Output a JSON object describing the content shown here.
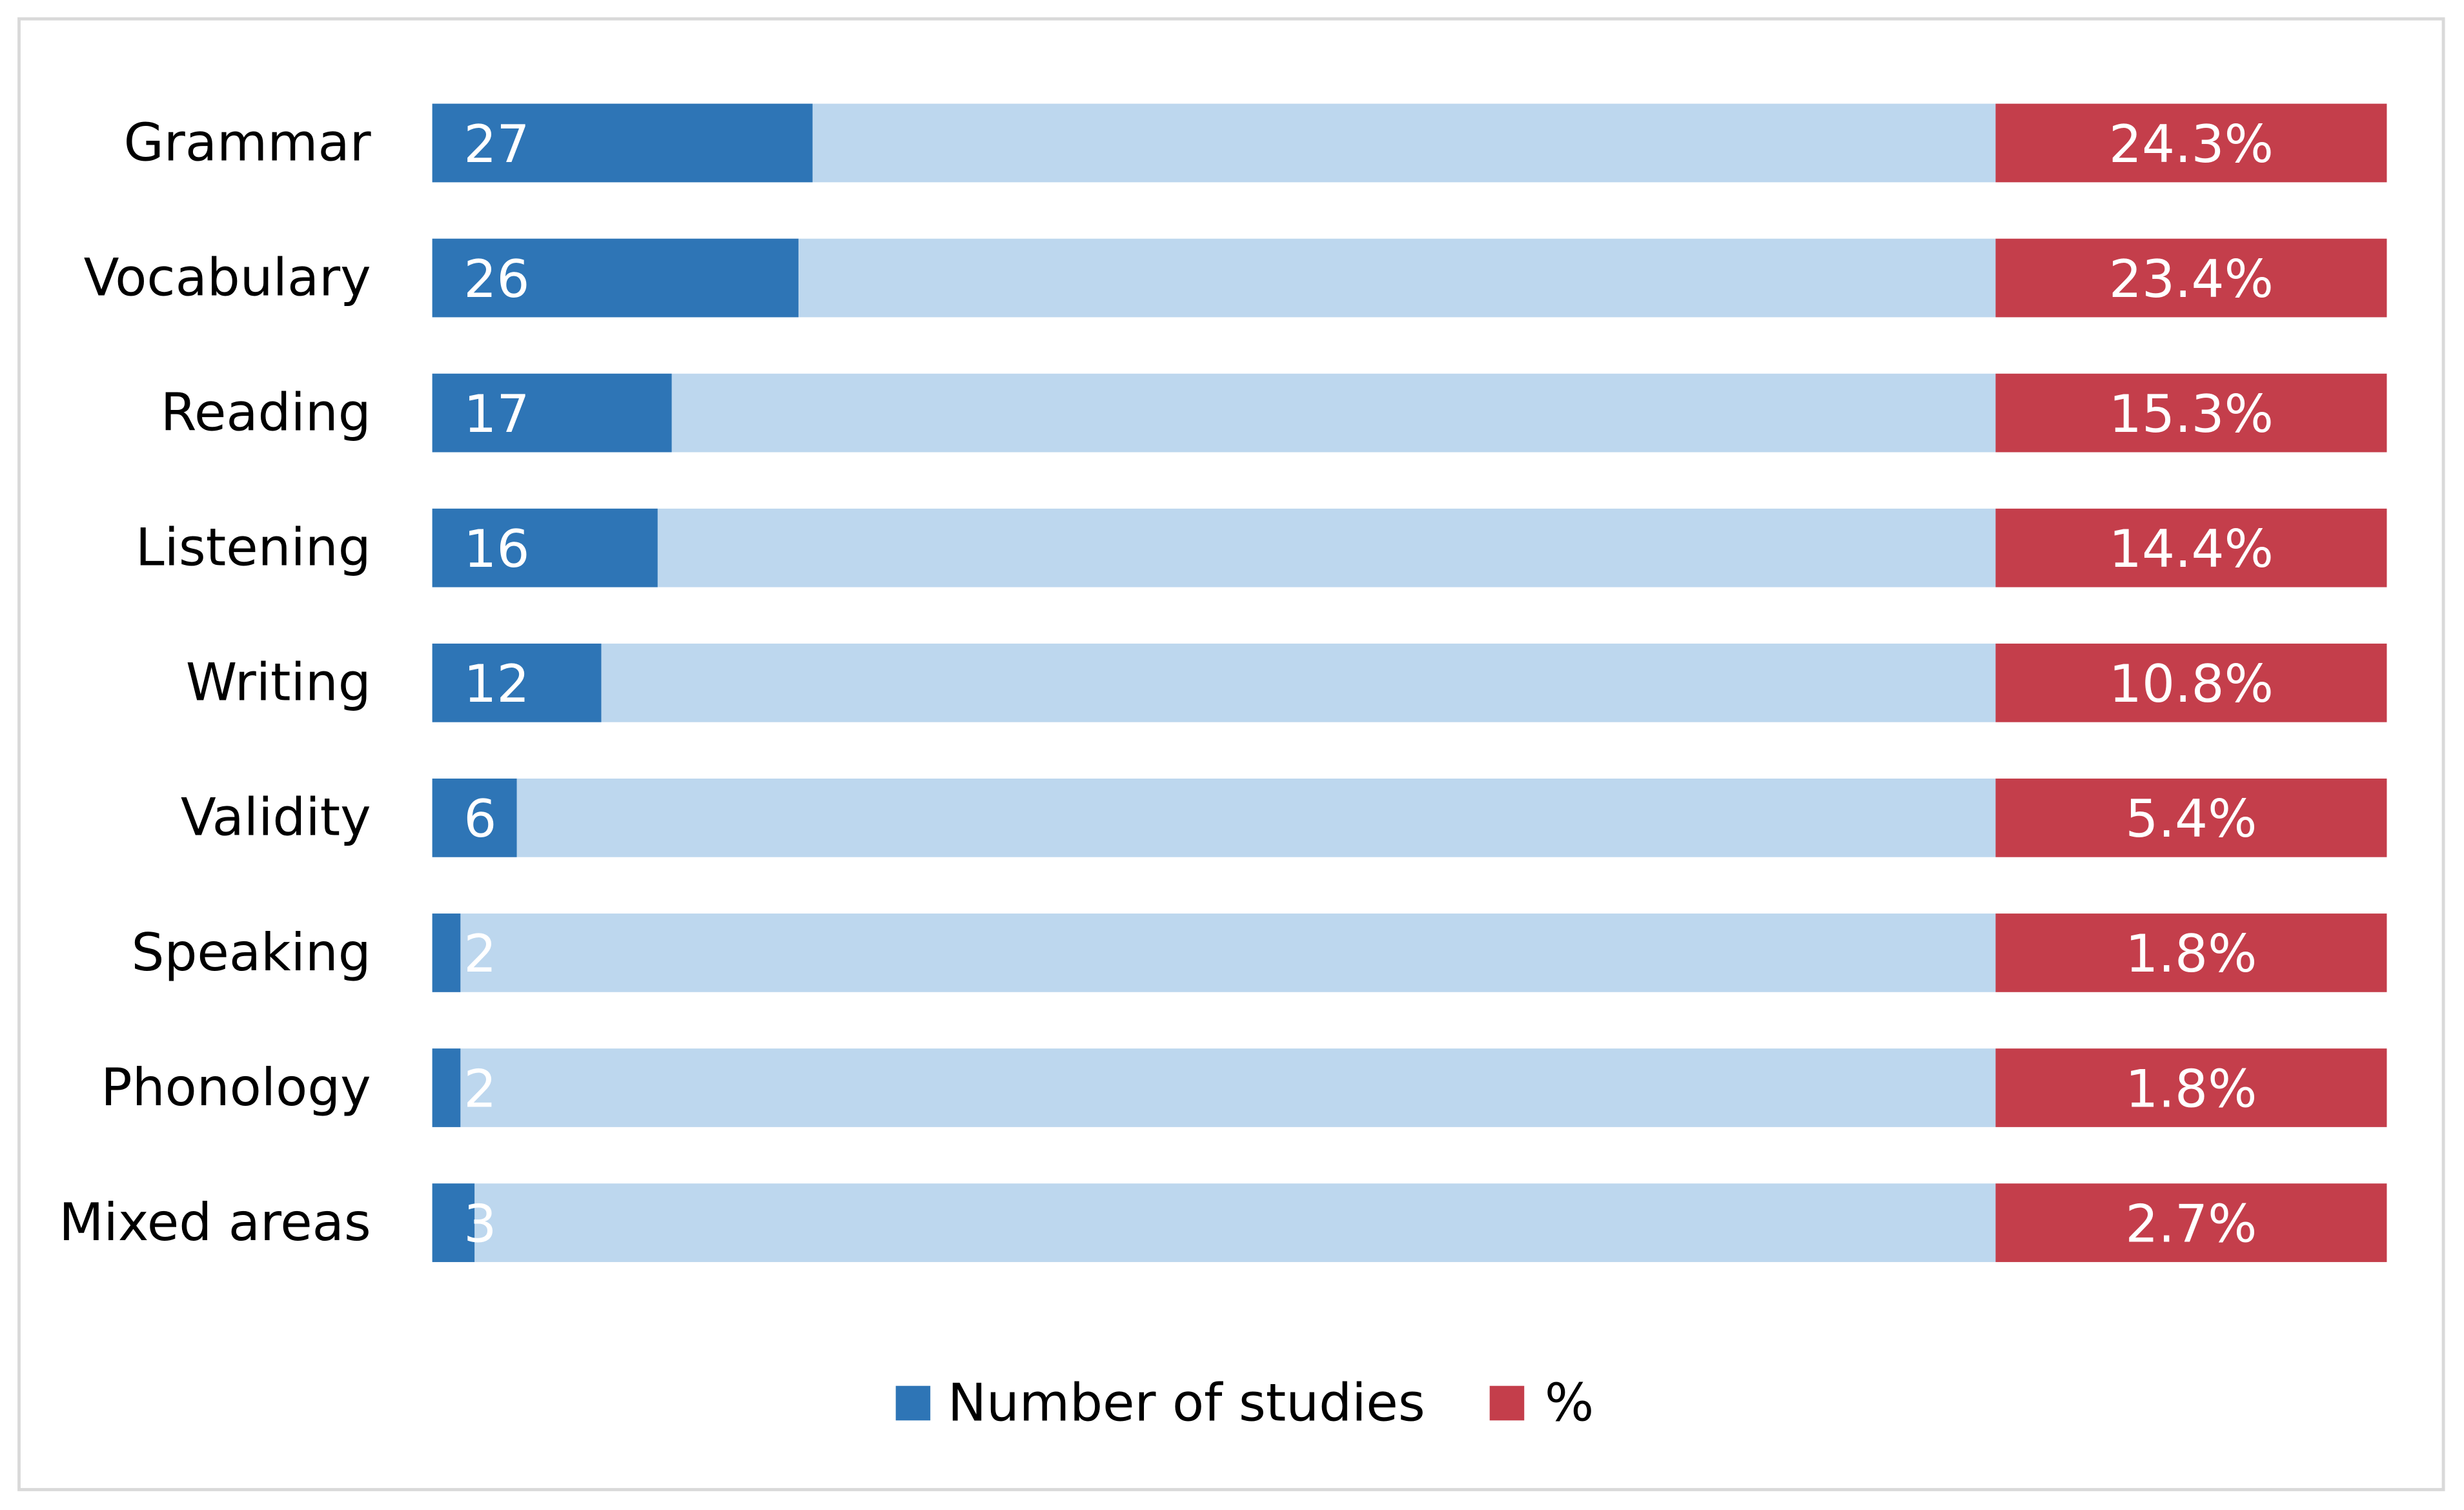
{
  "chart_data": {
    "type": "bar",
    "orientation": "horizontal",
    "categories": [
      "Grammar",
      "Vocabulary",
      "Reading",
      "Listening",
      "Writing",
      "Validity",
      "Speaking",
      "Phonology",
      "Mixed areas"
    ],
    "series": [
      {
        "name": "Number of studies",
        "color": "#2e75b6",
        "values": [
          27,
          26,
          17,
          16,
          12,
          6,
          2,
          2,
          3
        ]
      },
      {
        "name": "%",
        "color": "#c43e4b",
        "values": [
          24.3,
          23.4,
          15.3,
          14.4,
          10.8,
          5.4,
          1.8,
          1.8,
          2.7
        ],
        "value_labels": [
          "24.3%",
          "23.4%",
          "15.3%",
          "14.4%",
          "10.8%",
          "5.4%",
          "1.8%",
          "1.8%",
          "2.7%"
        ]
      }
    ],
    "track_color": "#bdd7ee",
    "legend": "bottom"
  }
}
